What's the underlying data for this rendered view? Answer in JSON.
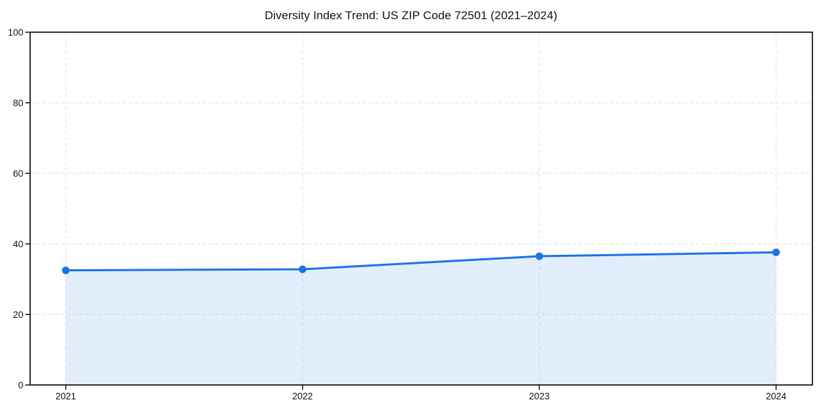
{
  "page": {
    "background_color": "#ffffff"
  },
  "chart_data": {
    "type": "area",
    "title": "Diversity Index Trend: US ZIP Code 72501 (2021–2024)",
    "categories": [
      "2021",
      "2022",
      "2023",
      "2024"
    ],
    "series": [
      {
        "name": "Diversity Index",
        "values": [
          32.5,
          32.8,
          36.5,
          37.6
        ]
      }
    ],
    "xlabel": "",
    "ylabel": "",
    "ylim": [
      0,
      100
    ],
    "yticks": [
      0,
      20,
      40,
      60,
      80,
      100
    ],
    "grid": true,
    "grid_style": "dashed",
    "legend_position": "none",
    "line_color": "#1a73e8",
    "marker_color": "#1a73e8",
    "fill_color": "rgba(26,115,232,0.12)",
    "gridline_color": "#dedede",
    "spine_color": "#000000",
    "tick_label_color": "#111111"
  }
}
